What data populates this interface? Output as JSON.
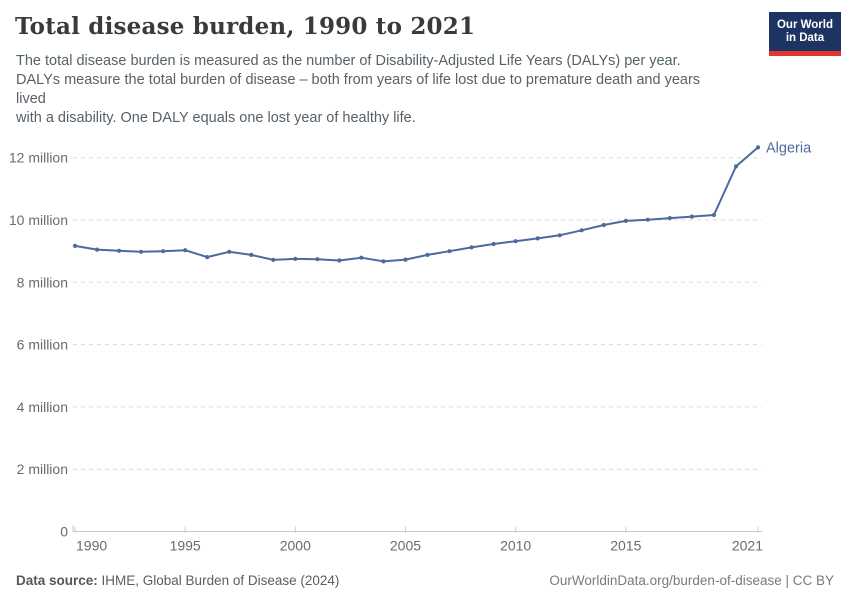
{
  "header": {
    "title": "Total disease burden, 1990 to 2021",
    "subtitle": "The total disease burden is measured as the number of Disability-Adjusted Life Years (DALYs) per year.\nDALYs measure the total burden of disease – both from years of life lost due to premature death and years\nlived\nwith a disability. One DALY equals one lost year of healthy life.",
    "logo": {
      "line1": "Our World",
      "line2": "in Data",
      "bg_color": "#1d3463",
      "stripe_color": "#e0362c"
    }
  },
  "footer": {
    "source_label": "Data source:",
    "source_text": " IHME, Global Burden of Disease (2024)",
    "credit": "OurWorldinData.org/burden-of-disease | CC BY"
  },
  "chart_data": {
    "type": "line",
    "title": "Total disease burden, 1990 to 2021",
    "entity_label": "Algeria",
    "value_unit": "DALYs (million) per year",
    "grid": "dashed-horizontal",
    "legend": "end-of-line-label",
    "xlim": [
      1990,
      2021
    ],
    "ylim": [
      0,
      12.8
    ],
    "x_ticks": [
      1990,
      1995,
      2000,
      2005,
      2010,
      2015,
      2021
    ],
    "y_ticks": [
      {
        "value": 12,
        "label": "12 million"
      },
      {
        "value": 10,
        "label": "10 million"
      },
      {
        "value": 8,
        "label": "8 million"
      },
      {
        "value": 6,
        "label": "6 million"
      },
      {
        "value": 4,
        "label": "4 million"
      },
      {
        "value": 2,
        "label": "2 million"
      },
      {
        "value": 0,
        "label": "0"
      }
    ],
    "x": [
      1990,
      1991,
      1992,
      1993,
      1994,
      1995,
      1996,
      1997,
      1998,
      1999,
      2000,
      2001,
      2002,
      2003,
      2004,
      2005,
      2006,
      2007,
      2008,
      2009,
      2010,
      2011,
      2012,
      2013,
      2014,
      2015,
      2016,
      2017,
      2018,
      2019,
      2020,
      2021
    ],
    "series": [
      {
        "name": "Algeria",
        "color": "#4c6a9f",
        "values_millions": [
          9.17,
          9.05,
          9.01,
          8.98,
          9.0,
          9.03,
          8.81,
          8.98,
          8.88,
          8.72,
          8.75,
          8.74,
          8.7,
          8.79,
          8.67,
          8.73,
          8.88,
          9.0,
          9.12,
          9.23,
          9.32,
          9.41,
          9.51,
          9.67,
          9.84,
          9.97,
          10.01,
          10.06,
          10.11,
          10.16,
          11.72,
          12.33
        ]
      }
    ],
    "colors": {
      "grid": "#dcdcdc",
      "axis_line": "#c8c8c8",
      "tick": "#cfcfcf",
      "axis_text": "#6b6b6b"
    }
  }
}
